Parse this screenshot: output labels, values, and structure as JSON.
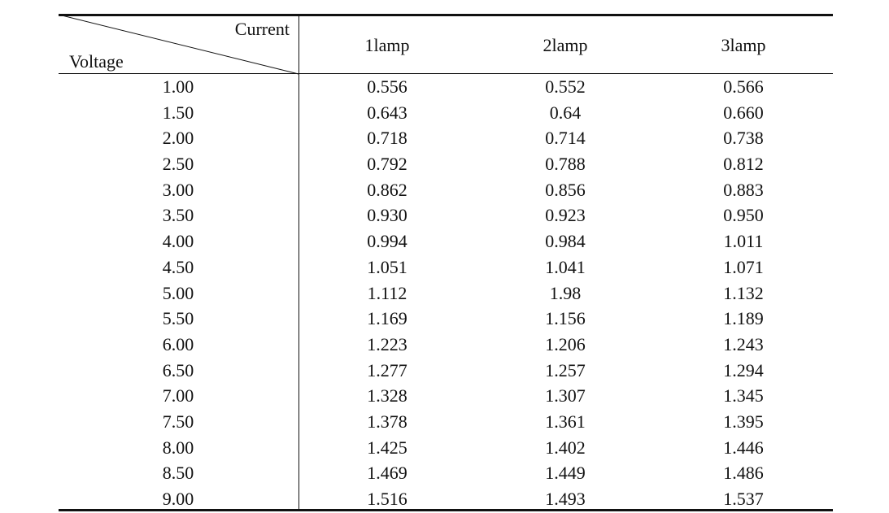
{
  "table": {
    "corner": {
      "column_label": "Current",
      "row_label": "Voltage"
    },
    "headers": [
      "1lamp",
      "2lamp",
      "3lamp"
    ],
    "rows": [
      {
        "voltage": "1.00",
        "values": [
          "0.556",
          "0.552",
          "0.566"
        ]
      },
      {
        "voltage": "1.50",
        "values": [
          "0.643",
          "0.64",
          "0.660"
        ]
      },
      {
        "voltage": "2.00",
        "values": [
          "0.718",
          "0.714",
          "0.738"
        ]
      },
      {
        "voltage": "2.50",
        "values": [
          "0.792",
          "0.788",
          "0.812"
        ]
      },
      {
        "voltage": "3.00",
        "values": [
          "0.862",
          "0.856",
          "0.883"
        ]
      },
      {
        "voltage": "3.50",
        "values": [
          "0.930",
          "0.923",
          "0.950"
        ]
      },
      {
        "voltage": "4.00",
        "values": [
          "0.994",
          "0.984",
          "1.011"
        ]
      },
      {
        "voltage": "4.50",
        "values": [
          "1.051",
          "1.041",
          "1.071"
        ]
      },
      {
        "voltage": "5.00",
        "values": [
          "1.112",
          "1.98",
          "1.132"
        ]
      },
      {
        "voltage": "5.50",
        "values": [
          "1.169",
          "1.156",
          "1.189"
        ]
      },
      {
        "voltage": "6.00",
        "values": [
          "1.223",
          "1.206",
          "1.243"
        ]
      },
      {
        "voltage": "6.50",
        "values": [
          "1.277",
          "1.257",
          "1.294"
        ]
      },
      {
        "voltage": "7.00",
        "values": [
          "1.328",
          "1.307",
          "1.345"
        ]
      },
      {
        "voltage": "7.50",
        "values": [
          "1.378",
          "1.361",
          "1.395"
        ]
      },
      {
        "voltage": "8.00",
        "values": [
          "1.425",
          "1.402",
          "1.446"
        ]
      },
      {
        "voltage": "8.50",
        "values": [
          "1.469",
          "1.449",
          "1.486"
        ]
      },
      {
        "voltage": "9.00",
        "values": [
          "1.516",
          "1.493",
          "1.537"
        ]
      }
    ]
  }
}
